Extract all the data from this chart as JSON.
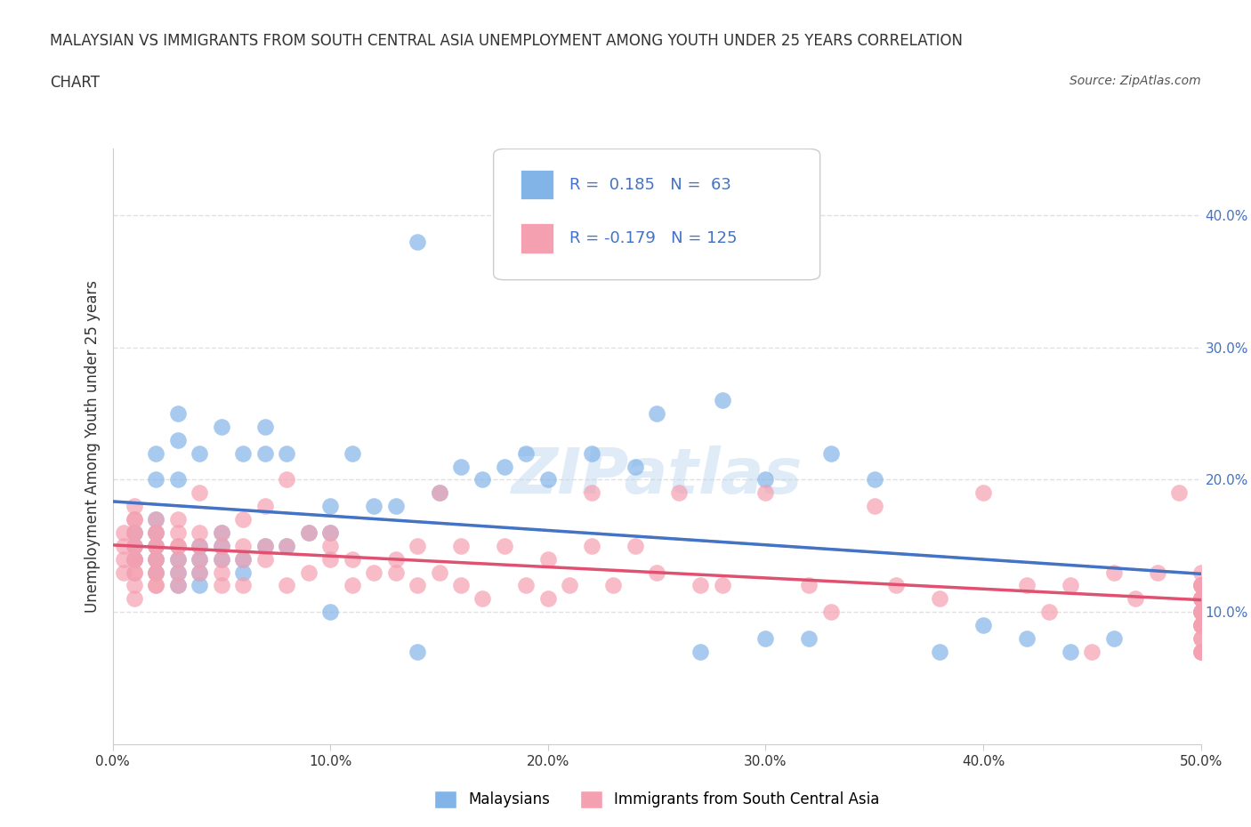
{
  "title_line1": "MALAYSIAN VS IMMIGRANTS FROM SOUTH CENTRAL ASIA UNEMPLOYMENT AMONG YOUTH UNDER 25 YEARS CORRELATION",
  "title_line2": "CHART",
  "source": "Source: ZipAtlas.com",
  "xlabel": "",
  "ylabel": "Unemployment Among Youth under 25 years",
  "xlim": [
    0.0,
    0.5
  ],
  "ylim": [
    0.0,
    0.45
  ],
  "x_ticks": [
    0.0,
    0.1,
    0.2,
    0.3,
    0.4,
    0.5
  ],
  "x_tick_labels": [
    "0.0%",
    "10.0%",
    "20.0%",
    "30.0%",
    "40.0%",
    "50.0%"
  ],
  "y_ticks": [
    0.0,
    0.1,
    0.2,
    0.3,
    0.4
  ],
  "y_tick_labels": [
    "",
    "10.0%",
    "20.0%",
    "30.0%",
    "40.0%"
  ],
  "R_malaysian": 0.185,
  "N_malaysian": 63,
  "R_immigrant": -0.179,
  "N_immigrant": 125,
  "color_malaysian": "#82b4e8",
  "color_immigrant": "#f4a0b0",
  "color_trend_malaysian": "#4472c4",
  "color_trend_immigrant": "#e05070",
  "color_trend_malaysian_dashed": "#82b4e8",
  "watermark": "ZIPatlas",
  "watermark_color": "#c0d8f0",
  "background_color": "#ffffff",
  "legend_R_color": "#4472c4",
  "grid_color": "#e0e0e0",
  "malaysian_x": [
    0.01,
    0.01,
    0.01,
    0.02,
    0.02,
    0.02,
    0.02,
    0.02,
    0.02,
    0.02,
    0.03,
    0.03,
    0.03,
    0.03,
    0.03,
    0.03,
    0.04,
    0.04,
    0.04,
    0.04,
    0.04,
    0.05,
    0.05,
    0.05,
    0.05,
    0.06,
    0.06,
    0.06,
    0.07,
    0.07,
    0.07,
    0.08,
    0.08,
    0.09,
    0.1,
    0.1,
    0.1,
    0.11,
    0.12,
    0.13,
    0.14,
    0.14,
    0.15,
    0.16,
    0.17,
    0.18,
    0.19,
    0.2,
    0.22,
    0.24,
    0.25,
    0.27,
    0.28,
    0.3,
    0.3,
    0.32,
    0.33,
    0.35,
    0.38,
    0.4,
    0.42,
    0.44,
    0.46
  ],
  "malaysian_y": [
    0.14,
    0.15,
    0.16,
    0.13,
    0.14,
    0.15,
    0.16,
    0.17,
    0.2,
    0.22,
    0.12,
    0.13,
    0.14,
    0.2,
    0.23,
    0.25,
    0.12,
    0.13,
    0.14,
    0.15,
    0.22,
    0.14,
    0.15,
    0.16,
    0.24,
    0.13,
    0.14,
    0.22,
    0.15,
    0.22,
    0.24,
    0.15,
    0.22,
    0.16,
    0.1,
    0.16,
    0.18,
    0.22,
    0.18,
    0.18,
    0.07,
    0.38,
    0.19,
    0.21,
    0.2,
    0.21,
    0.22,
    0.2,
    0.22,
    0.21,
    0.25,
    0.07,
    0.26,
    0.08,
    0.2,
    0.08,
    0.22,
    0.2,
    0.07,
    0.09,
    0.08,
    0.07,
    0.08
  ],
  "immigrant_x": [
    0.005,
    0.005,
    0.005,
    0.005,
    0.01,
    0.01,
    0.01,
    0.01,
    0.01,
    0.01,
    0.01,
    0.01,
    0.01,
    0.01,
    0.01,
    0.01,
    0.01,
    0.01,
    0.02,
    0.02,
    0.02,
    0.02,
    0.02,
    0.02,
    0.02,
    0.02,
    0.02,
    0.02,
    0.02,
    0.03,
    0.03,
    0.03,
    0.03,
    0.03,
    0.03,
    0.03,
    0.04,
    0.04,
    0.04,
    0.04,
    0.04,
    0.05,
    0.05,
    0.05,
    0.05,
    0.05,
    0.06,
    0.06,
    0.06,
    0.06,
    0.07,
    0.07,
    0.07,
    0.08,
    0.08,
    0.08,
    0.09,
    0.09,
    0.1,
    0.1,
    0.1,
    0.11,
    0.11,
    0.12,
    0.13,
    0.13,
    0.14,
    0.14,
    0.15,
    0.15,
    0.16,
    0.16,
    0.17,
    0.18,
    0.19,
    0.2,
    0.2,
    0.21,
    0.22,
    0.22,
    0.23,
    0.24,
    0.25,
    0.26,
    0.27,
    0.28,
    0.3,
    0.32,
    0.33,
    0.35,
    0.36,
    0.38,
    0.4,
    0.42,
    0.43,
    0.44,
    0.45,
    0.46,
    0.47,
    0.48,
    0.49,
    0.5,
    0.5,
    0.5,
    0.5,
    0.5,
    0.5,
    0.5,
    0.5,
    0.5,
    0.5,
    0.5,
    0.5,
    0.5,
    0.5,
    0.5,
    0.5,
    0.5,
    0.5,
    0.5,
    0.5,
    0.5,
    0.5,
    0.5,
    0.5
  ],
  "immigrant_y": [
    0.13,
    0.14,
    0.15,
    0.16,
    0.11,
    0.12,
    0.13,
    0.14,
    0.15,
    0.16,
    0.17,
    0.13,
    0.14,
    0.15,
    0.16,
    0.17,
    0.18,
    0.14,
    0.12,
    0.13,
    0.14,
    0.15,
    0.16,
    0.13,
    0.14,
    0.15,
    0.16,
    0.12,
    0.17,
    0.13,
    0.14,
    0.15,
    0.16,
    0.12,
    0.15,
    0.17,
    0.13,
    0.14,
    0.15,
    0.16,
    0.19,
    0.13,
    0.14,
    0.15,
    0.12,
    0.16,
    0.14,
    0.15,
    0.12,
    0.17,
    0.14,
    0.15,
    0.18,
    0.12,
    0.15,
    0.2,
    0.13,
    0.16,
    0.14,
    0.15,
    0.16,
    0.12,
    0.14,
    0.13,
    0.14,
    0.13,
    0.12,
    0.15,
    0.13,
    0.19,
    0.12,
    0.15,
    0.11,
    0.15,
    0.12,
    0.11,
    0.14,
    0.12,
    0.15,
    0.19,
    0.12,
    0.15,
    0.13,
    0.19,
    0.12,
    0.12,
    0.19,
    0.12,
    0.1,
    0.18,
    0.12,
    0.11,
    0.19,
    0.12,
    0.1,
    0.12,
    0.07,
    0.13,
    0.11,
    0.13,
    0.19,
    0.09,
    0.1,
    0.11,
    0.12,
    0.13,
    0.07,
    0.1,
    0.11,
    0.12,
    0.08,
    0.09,
    0.11,
    0.1,
    0.08,
    0.12,
    0.07,
    0.11,
    0.09,
    0.1,
    0.11,
    0.12,
    0.07,
    0.09,
    0.1
  ]
}
